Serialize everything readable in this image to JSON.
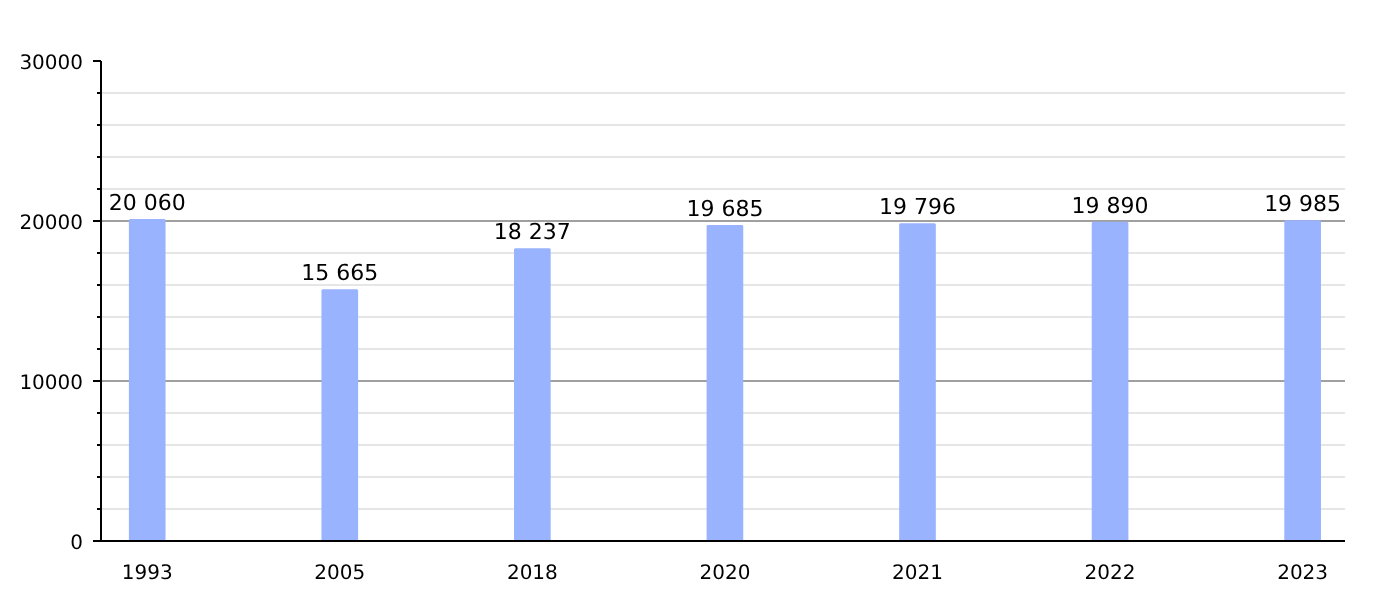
{
  "chart_data": {
    "type": "bar",
    "categories": [
      "1993",
      "2005",
      "2018",
      "2020",
      "2021",
      "2022",
      "2023"
    ],
    "values": [
      20060,
      15665,
      18237,
      19685,
      19796,
      19890,
      19985
    ],
    "value_labels": [
      "20 060",
      "15 665",
      "18 237",
      "19 685",
      "19 796",
      "19 890",
      "19 985"
    ],
    "color": "#99b3ff",
    "ylim": [
      0,
      30000
    ],
    "yticks": [
      0,
      10000,
      20000,
      30000
    ],
    "grid": "y"
  }
}
